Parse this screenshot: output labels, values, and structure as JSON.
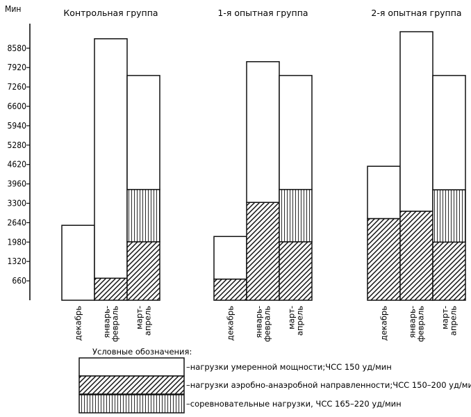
{
  "chart_data": {
    "type": "bar",
    "stacked": true,
    "ylabel": "Мин",
    "yticks": [
      660,
      1320,
      1980,
      2640,
      3300,
      3960,
      4620,
      5280,
      5940,
      6600,
      7260,
      7920,
      8580
    ],
    "ylim": [
      0,
      9000
    ],
    "groups": [
      {
        "title": "Контрольная группа",
        "categories": [
          "декабрь",
          "январь-\nфевраль",
          "март-\nапрель"
        ],
        "stacks": [
          {
            "moderate": 2550,
            "aerobic": 0,
            "competitive": 0
          },
          {
            "moderate": 8150,
            "aerobic": 750,
            "competitive": 0
          },
          {
            "moderate": 3880,
            "aerobic": 1990,
            "competitive": 1780
          }
        ]
      },
      {
        "title": "1-я опытная группа",
        "categories": [
          "декабрь",
          "январь-\nфевраль",
          "март-\nапрель"
        ],
        "stacks": [
          {
            "moderate": 1450,
            "aerobic": 720,
            "competitive": 0
          },
          {
            "moderate": 4790,
            "aerobic": 3330,
            "competitive": 0
          },
          {
            "moderate": 3880,
            "aerobic": 1990,
            "competitive": 1780
          }
        ]
      },
      {
        "title": "2-я опытная группа",
        "categories": [
          "декабрь",
          "январь-\nфевраль",
          "март-\nапрель"
        ],
        "stacks": [
          {
            "moderate": 1780,
            "aerobic": 2780,
            "competitive": 0
          },
          {
            "moderate": 6110,
            "aerobic": 3030,
            "competitive": 0
          },
          {
            "moderate": 3890,
            "aerobic": 1980,
            "competitive": 1780
          }
        ]
      }
    ],
    "legend": {
      "title": "Условные обозначения:",
      "items": [
        {
          "key": "moderate",
          "label": "–нагрузки умеренной мощности;ЧСС 150 уд/мин",
          "fill": "white"
        },
        {
          "key": "aerobic",
          "label": "–нагрузки аэробно-анаэробной направленности;ЧСС 150–200 уд/мин",
          "fill": "diagonal"
        },
        {
          "key": "competitive",
          "label": "–соревновательные нагрузки, ЧСС 165–220 уд/мин",
          "fill": "vertical"
        }
      ]
    },
    "grid": false
  }
}
